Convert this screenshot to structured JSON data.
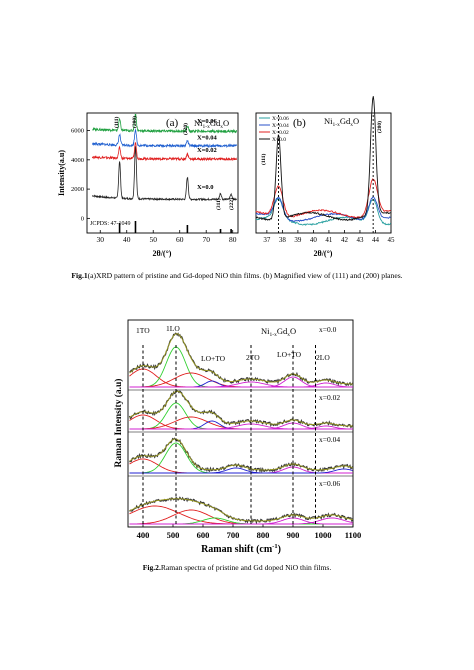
{
  "figure1": {
    "panel_a": {
      "panel_label": "(a)",
      "formula": {
        "main": "Ni",
        "sub1": "1-x",
        "mid": "Gd",
        "sub2": "x",
        "end": "O"
      },
      "ylabel": "Intensity(a.u)",
      "xlabel": "2θ/(°)",
      "peak_labels": [
        "(111)",
        "(200)",
        "(220)",
        "(311)",
        "(222)"
      ],
      "jcpds": "JCPDS: 47-1049"
    },
    "panel_b": {
      "panel_label": "(b)",
      "formula": {
        "main": "Ni",
        "sub1": "1-x",
        "mid": "Gd",
        "sub2": "x",
        "end": "O"
      },
      "xlabel": "2θ/(°)",
      "peak_labels": [
        "(111)",
        "(200)"
      ]
    }
  },
  "caption1": {
    "bold": "Fig.1",
    "text": "(a)XRD pattern of pristine and Gd-doped NiO thin films. (b) Magnified view of (111) and (200) planes."
  },
  "figure2": {
    "formula": {
      "main": "Ni",
      "sub1": "1-x",
      "mid": "Gd",
      "sub2": "x",
      "end": "O"
    },
    "ylabel": "Raman Intensity (a.u)",
    "xlabel": "Raman shift (cm",
    "xlabel_sup": "-1",
    "xlabel_end": ")",
    "mode_labels": [
      "1TO",
      "1LO",
      "LO+TO",
      "2TO",
      "LO+TO",
      "2LO"
    ]
  },
  "caption2": {
    "bold": "Fig.2.",
    "text": "Raman spectra of pristine and Gd doped NiO thin films."
  },
  "colors": {
    "x0": "#222222",
    "x002": "#e02020",
    "x004": "#2060d0",
    "x006": "#20a040",
    "b006": "#2aa0a0",
    "b004": "#2a50c8",
    "b002": "#e02020",
    "b00": "#111111",
    "raman_data": "#3a3a3a",
    "raman_fit": "#9a9a20",
    "raman_tot": "#e0b000",
    "raman_red": "#e02020",
    "raman_green": "#30d030",
    "raman_blue": "#2020d0",
    "raman_mag": "#d020d0"
  },
  "chart_data": [
    {
      "type": "line",
      "title": "(a)",
      "xlabel": "2θ/(°)",
      "ylabel": "Intensity(a.u)",
      "xlim": [
        25,
        82
      ],
      "ylim": [
        -1000,
        7200
      ],
      "x_ticks": [
        30,
        40,
        50,
        60,
        70,
        80
      ],
      "y_ticks": [
        0,
        2000,
        4000,
        6000
      ],
      "grid": false,
      "reference": {
        "label": "JCPDS: 47-1049",
        "positions": [
          37.3,
          43.3,
          62.9,
          75.4,
          79.4
        ]
      },
      "series": [
        {
          "name": "X=0.0",
          "offset": 1300,
          "peaks": [
            {
              "x": 37.3,
              "h": 2500
            },
            {
              "x": 43.3,
              "h": 3600
            },
            {
              "x": 62.9,
              "h": 1500
            },
            {
              "x": 75.4,
              "h": 400
            },
            {
              "x": 79.4,
              "h": 350
            }
          ]
        },
        {
          "name": "X=0.02",
          "offset": 4050,
          "peaks": [
            {
              "x": 37.3,
              "h": 700
            },
            {
              "x": 43.3,
              "h": 1100
            },
            {
              "x": 62.9,
              "h": 350
            }
          ]
        },
        {
          "name": "X=0.04",
          "offset": 4950,
          "peaks": [
            {
              "x": 37.3,
              "h": 700
            },
            {
              "x": 43.3,
              "h": 1100
            },
            {
              "x": 62.9,
              "h": 350
            }
          ]
        },
        {
          "name": "X=0.06",
          "offset": 5950,
          "peaks": [
            {
              "x": 37.3,
              "h": 750
            },
            {
              "x": 43.3,
              "h": 1150
            },
            {
              "x": 62.9,
              "h": 350
            }
          ]
        }
      ]
    },
    {
      "type": "line",
      "title": "(b)",
      "xlabel": "2θ/(°)",
      "xlim": [
        36.3,
        45
      ],
      "ylim": [
        0,
        1
      ],
      "x_ticks": [
        37,
        38,
        39,
        40,
        41,
        42,
        43,
        44,
        45
      ],
      "grid": false,
      "legend": "top-left",
      "vlines": [
        37.75,
        43.85
      ],
      "series": [
        {
          "name": "X=0.06",
          "peak_heights": [
            0.16,
            0.2
          ]
        },
        {
          "name": "X=0.04",
          "peak_heights": [
            0.17,
            0.2
          ]
        },
        {
          "name": "X=0.02",
          "peak_heights": [
            0.26,
            0.3
          ]
        },
        {
          "name": "X=0.0",
          "peak_heights": [
            0.7,
            0.98
          ]
        }
      ]
    },
    {
      "type": "line",
      "xlabel": "Raman shift (cm-1)",
      "ylabel": "Raman Intensity (a.u)",
      "xlim": [
        350,
        1100
      ],
      "x_ticks": [
        400,
        500,
        600,
        700,
        800,
        900,
        1000,
        1100
      ],
      "grid": false,
      "vlines": [
        400,
        510,
        760,
        900,
        975
      ],
      "series": [
        {
          "name": "x=0.0",
          "component_centers": [
            400,
            510,
            630,
            760,
            900,
            1010
          ]
        },
        {
          "name": "x=0.02",
          "component_centers": [
            400,
            510,
            630,
            760,
            900,
            1010
          ]
        },
        {
          "name": "x=0.04",
          "component_centers": [
            400,
            510,
            710,
            900
          ]
        },
        {
          "name": "x=0.06",
          "component_centers": [
            440,
            560,
            900,
            1030
          ]
        }
      ]
    }
  ]
}
